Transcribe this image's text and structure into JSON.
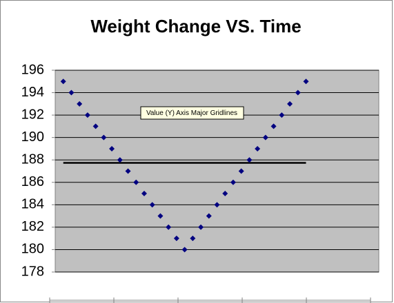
{
  "chart_data": {
    "type": "scatter",
    "title": "Weight Change VS. Time",
    "x": [
      1,
      2,
      3,
      4,
      5,
      6,
      7,
      8,
      9,
      10,
      11,
      12,
      13,
      14,
      15,
      16,
      17,
      18,
      19,
      20,
      21,
      22,
      23,
      24,
      25,
      26,
      27,
      28,
      29,
      30,
      31
    ],
    "values": [
      195,
      194,
      193,
      192,
      191,
      190,
      189,
      188,
      187,
      186,
      185,
      184,
      183,
      182,
      181,
      180,
      181,
      182,
      183,
      184,
      185,
      186,
      187,
      188,
      189,
      190,
      191,
      192,
      193,
      194,
      195
    ],
    "color": "#000080",
    "reference_line": 187.74,
    "xlim": [
      0,
      40
    ],
    "ylim": [
      178,
      196
    ],
    "yticks": [
      178,
      180,
      182,
      184,
      186,
      188,
      190,
      192,
      194,
      196
    ],
    "grid": true,
    "tooltip": "Value (Y) Axis Major Gridlines"
  }
}
